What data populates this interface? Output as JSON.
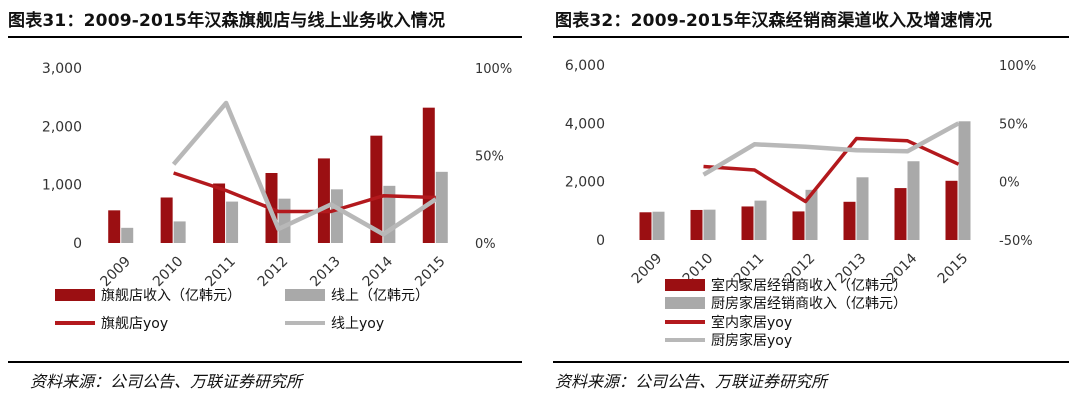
{
  "colors": {
    "dark_red": "#9b0f12",
    "gray": "#a9a9a9",
    "line_red": "#b3191d",
    "line_gray": "#b8b8b8"
  },
  "chart_data": [
    {
      "id": "left",
      "type": "bar",
      "title": "图表31：2009-2015年汉森旗舰店与线上业务收入情况",
      "source": "资料来源：公司公告、万联证券研究所",
      "categories": [
        "2009",
        "2010",
        "2011",
        "2012",
        "2013",
        "2014",
        "2015"
      ],
      "ylim": [
        0,
        3000
      ],
      "yticks": [
        0,
        1000,
        2000,
        3000
      ],
      "ytick_labels": [
        "0",
        "1,000",
        "2,000",
        "3,000"
      ],
      "y2lim": [
        0,
        100
      ],
      "y2ticks": [
        0,
        50,
        100
      ],
      "y2tick_labels": [
        "0%",
        "50%",
        "100%"
      ],
      "series": [
        {
          "name": "旗舰店收入（亿韩元）",
          "kind": "bar",
          "color": "#9b0f12",
          "axis": "left",
          "values": [
            560,
            780,
            1020,
            1200,
            1450,
            1840,
            2320
          ]
        },
        {
          "name": "线上（亿韩元）",
          "kind": "bar",
          "color": "#a9a9a9",
          "axis": "left",
          "values": [
            260,
            370,
            710,
            760,
            920,
            980,
            1220
          ]
        },
        {
          "name": "旗舰店yoy",
          "kind": "line",
          "color": "#b3191d",
          "axis": "right",
          "values": [
            null,
            40,
            30,
            18,
            18,
            27,
            26
          ]
        },
        {
          "name": "线上yoy",
          "kind": "line",
          "color": "#b8b8b8",
          "axis": "right",
          "values": [
            null,
            45,
            80,
            8,
            22,
            5,
            25
          ]
        }
      ],
      "legend_layout": "grid-2col"
    },
    {
      "id": "right",
      "type": "bar",
      "title": "图表32：2009-2015年汉森经销商渠道收入及增速情况",
      "source": "资料来源：公司公告、万联证券研究所",
      "categories": [
        "2009",
        "2010",
        "2011",
        "2012",
        "2013",
        "2014",
        "2015"
      ],
      "ylim": [
        0,
        6000
      ],
      "yticks": [
        0,
        2000,
        4000,
        6000
      ],
      "ytick_labels": [
        "0",
        "2,000",
        "4,000",
        "6,000"
      ],
      "y2lim": [
        -50,
        100
      ],
      "y2ticks": [
        -50,
        0,
        50,
        100
      ],
      "y2tick_labels": [
        "-50%",
        "0%",
        "50%",
        "100%"
      ],
      "series": [
        {
          "name": "室内家居经销商收入（亿韩元）",
          "kind": "bar",
          "color": "#9b0f12",
          "axis": "left",
          "values": [
            950,
            1030,
            1150,
            980,
            1310,
            1780,
            2030
          ]
        },
        {
          "name": "厨房家居经销商收入（亿韩元）",
          "kind": "bar",
          "color": "#a9a9a9",
          "axis": "left",
          "values": [
            970,
            1040,
            1350,
            1720,
            2150,
            2700,
            4070
          ]
        },
        {
          "name": "室内家居yoy",
          "kind": "line",
          "color": "#b3191d",
          "axis": "right",
          "values": [
            null,
            13,
            10,
            -17,
            37,
            35,
            15
          ]
        },
        {
          "name": "厨房家居yoy",
          "kind": "line",
          "color": "#b8b8b8",
          "axis": "right",
          "values": [
            null,
            6,
            32,
            30,
            27,
            26,
            50
          ]
        }
      ],
      "legend_layout": "stacked"
    }
  ]
}
